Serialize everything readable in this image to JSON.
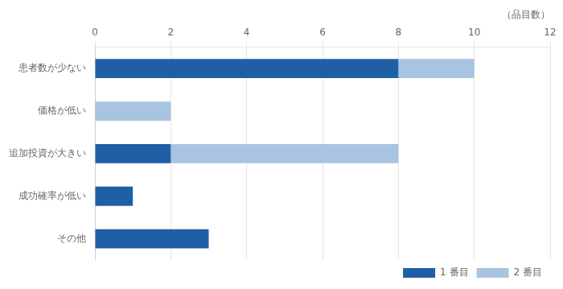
{
  "chart_data": {
    "type": "bar",
    "orientation": "horizontal",
    "stacked": true,
    "categories": [
      "患者数が少ない",
      "価格が低い",
      "追加投資が大きい",
      "成功確率が低い",
      "その他"
    ],
    "series": [
      {
        "name": "1 番目",
        "color": "#1f5fa6",
        "values": [
          8,
          0,
          2,
          1,
          3
        ]
      },
      {
        "name": "2 番目",
        "color": "#a8c4e0",
        "values": [
          2,
          2,
          6,
          0,
          0
        ]
      }
    ],
    "xlabel": "（品目数）",
    "xlim": [
      0,
      12
    ],
    "xticks": [
      0,
      2,
      4,
      6,
      8,
      10,
      12
    ],
    "grid": true,
    "legend": "lower right"
  }
}
